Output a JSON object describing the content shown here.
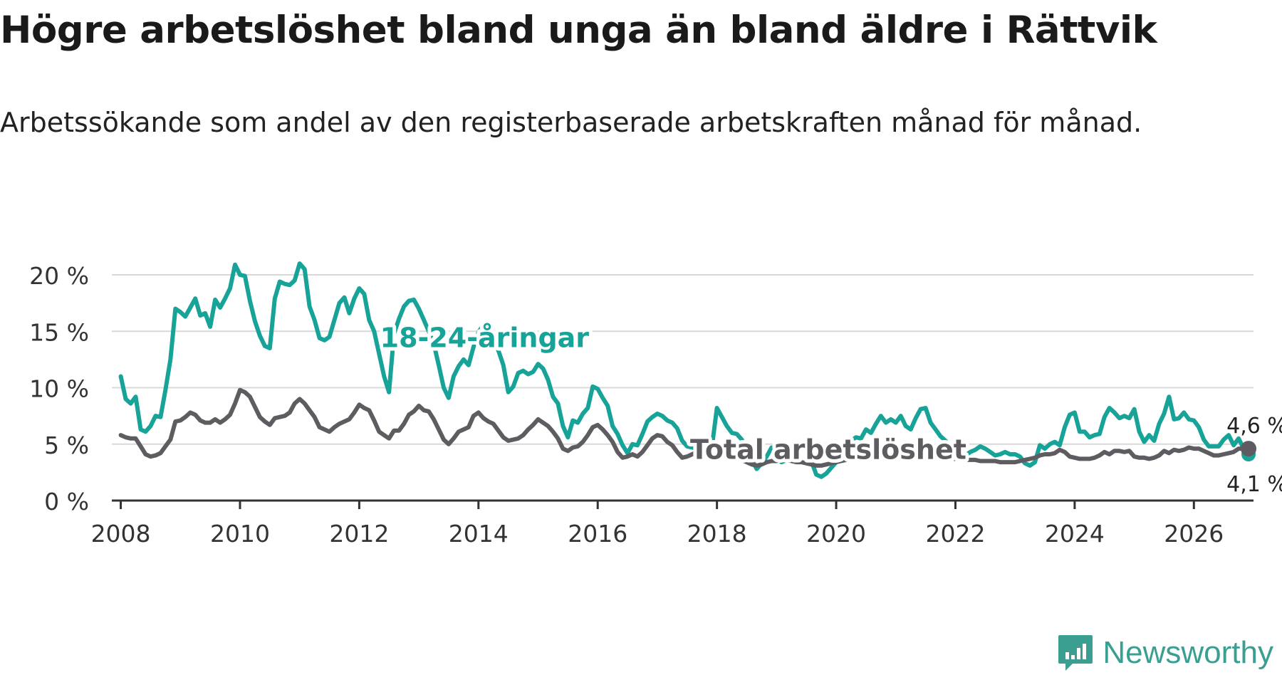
{
  "title": "Högre arbetslöshet bland unga än bland äldre i Rättvik",
  "subtitle": "Arbetssökande som andel av den registerbaserade arbetskraften månad för månad.",
  "brand": {
    "name": "Newsworthy",
    "icon": "chart-logo-icon"
  },
  "colors": {
    "youth": "#17a398",
    "total": "#5e5c60",
    "grid": "#d9d9d9",
    "axis": "#333333",
    "label_halo": "#ffffff"
  },
  "chart_data": {
    "type": "line",
    "xlabel": "",
    "ylabel": "",
    "xlim": [
      2007.85,
      2027.0
    ],
    "ylim": [
      0,
      20
    ],
    "x_ticks": [
      2008,
      2010,
      2012,
      2014,
      2016,
      2018,
      2020,
      2022,
      2024,
      2026
    ],
    "y_ticks": [
      0,
      5,
      10,
      15,
      20
    ],
    "y_tick_labels": [
      "0 %",
      "5 %",
      "10 %",
      "15 %",
      "20 %"
    ],
    "x_start": 2008.0,
    "x_step": 0.0833333,
    "grid": true,
    "series": [
      {
        "name": "18-24-åringar",
        "label": "18-24-åringar",
        "end_label": "4,1 %",
        "values": [
          11.0,
          9.0,
          8.6,
          9.2,
          6.3,
          6.1,
          6.6,
          7.5,
          7.4,
          9.8,
          12.5,
          17.0,
          16.7,
          16.3,
          17.1,
          17.9,
          16.4,
          16.6,
          15.4,
          17.8,
          17.1,
          17.9,
          18.8,
          20.9,
          20.0,
          19.9,
          17.7,
          15.9,
          14.6,
          13.7,
          13.5,
          17.9,
          19.4,
          19.2,
          19.1,
          19.5,
          21.0,
          20.5,
          17.2,
          16.0,
          14.4,
          14.2,
          14.5,
          16.0,
          17.5,
          18.0,
          16.6,
          17.9,
          18.8,
          18.3,
          16.0,
          15.0,
          13.0,
          11.0,
          9.6,
          14.8,
          16.1,
          17.2,
          17.7,
          17.8,
          17.0,
          16.0,
          15.0,
          13.9,
          12.0,
          10.0,
          9.1,
          11.0,
          11.9,
          12.5,
          12.0,
          13.6,
          14.9,
          15.6,
          15.1,
          14.6,
          13.3,
          12.0,
          9.6,
          10.1,
          11.3,
          11.5,
          11.2,
          11.4,
          12.1,
          11.7,
          10.7,
          9.2,
          8.6,
          6.6,
          5.6,
          7.1,
          6.9,
          7.7,
          8.2,
          10.1,
          9.9,
          9.1,
          8.4,
          6.6,
          5.9,
          4.9,
          4.2,
          5.0,
          4.9,
          5.9,
          7.0,
          7.4,
          7.7,
          7.5,
          7.1,
          6.9,
          6.4,
          5.3,
          4.8,
          4.7,
          4.6,
          5.3,
          5.1,
          4.8,
          8.2,
          7.4,
          6.6,
          6.0,
          5.9,
          5.4,
          4.6,
          3.7,
          2.8,
          3.3,
          3.9,
          4.7,
          3.9,
          3.4,
          3.6,
          4.4,
          4.9,
          5.1,
          4.8,
          3.5,
          2.3,
          2.1,
          2.4,
          2.9,
          3.4,
          3.8,
          4.8,
          5.3,
          5.6,
          5.5,
          6.3,
          6.0,
          6.8,
          7.5,
          6.9,
          7.2,
          6.9,
          7.5,
          6.6,
          6.3,
          7.3,
          8.1,
          8.2,
          6.9,
          6.3,
          5.7,
          5.3,
          4.8,
          4.5,
          4.2,
          4.0,
          4.3,
          4.5,
          4.8,
          4.6,
          4.3,
          4.0,
          4.1,
          4.3,
          4.1,
          4.1,
          3.9,
          3.3,
          3.1,
          3.4,
          4.9,
          4.6,
          5.0,
          5.2,
          4.9,
          6.5,
          7.6,
          7.8,
          6.1,
          6.1,
          5.6,
          5.8,
          5.9,
          7.4,
          8.2,
          7.8,
          7.3,
          7.5,
          7.3,
          8.1,
          6.1,
          5.2,
          5.8,
          5.3,
          6.8,
          7.7,
          9.2,
          7.2,
          7.3,
          7.8,
          7.2,
          7.1,
          6.5,
          5.4,
          4.8,
          4.8,
          4.8,
          5.4,
          5.8,
          4.9,
          5.5,
          4.6,
          4.1
        ]
      },
      {
        "name": "Total arbetslöshet",
        "label": "Total arbetslöshet",
        "end_label": "4,6 %",
        "values": [
          5.8,
          5.6,
          5.5,
          5.5,
          4.8,
          4.1,
          3.9,
          4.0,
          4.2,
          4.8,
          5.4,
          7.0,
          7.1,
          7.4,
          7.8,
          7.6,
          7.1,
          6.9,
          6.9,
          7.2,
          6.9,
          7.2,
          7.6,
          8.6,
          9.8,
          9.6,
          9.2,
          8.3,
          7.4,
          7.0,
          6.7,
          7.3,
          7.4,
          7.5,
          7.8,
          8.6,
          9.0,
          8.6,
          8.0,
          7.4,
          6.5,
          6.3,
          6.1,
          6.5,
          6.8,
          7.0,
          7.2,
          7.8,
          8.5,
          8.2,
          8.0,
          7.1,
          6.1,
          5.8,
          5.5,
          6.2,
          6.2,
          6.8,
          7.6,
          7.9,
          8.4,
          8.0,
          7.9,
          7.2,
          6.3,
          5.4,
          5.0,
          5.5,
          6.1,
          6.3,
          6.5,
          7.5,
          7.8,
          7.3,
          7.0,
          6.8,
          6.2,
          5.6,
          5.3,
          5.4,
          5.5,
          5.8,
          6.3,
          6.7,
          7.2,
          6.9,
          6.6,
          6.1,
          5.5,
          4.6,
          4.4,
          4.7,
          4.8,
          5.2,
          5.8,
          6.5,
          6.7,
          6.3,
          5.8,
          5.2,
          4.3,
          3.8,
          3.9,
          4.1,
          3.9,
          4.3,
          4.9,
          5.5,
          5.8,
          5.7,
          5.2,
          4.9,
          4.3,
          3.8,
          3.9,
          4.1,
          4.3,
          4.6,
          4.7,
          4.6,
          4.4,
          4.3,
          4.2,
          4.0,
          3.8,
          3.6,
          3.4,
          3.2,
          3.1,
          3.2,
          3.4,
          3.5,
          3.5,
          3.6,
          3.6,
          3.5,
          3.4,
          3.4,
          3.3,
          3.2,
          3.1,
          3.1,
          3.2,
          3.3,
          3.4,
          3.5,
          3.6,
          3.7,
          3.7,
          3.8,
          3.9,
          4.0,
          4.0,
          4.1,
          4.2,
          4.1,
          4.0,
          4.0,
          4.0,
          4.1,
          4.0,
          4.0,
          3.9,
          3.9,
          3.8,
          3.8,
          3.8,
          3.7,
          3.7,
          3.7,
          3.6,
          3.6,
          3.6,
          3.5,
          3.5,
          3.5,
          3.5,
          3.4,
          3.4,
          3.4,
          3.4,
          3.5,
          3.6,
          3.7,
          3.8,
          4.0,
          4.1,
          4.1,
          4.2,
          4.5,
          4.3,
          3.9,
          3.8,
          3.7,
          3.7,
          3.7,
          3.8,
          4.0,
          4.3,
          4.1,
          4.4,
          4.4,
          4.3,
          4.4,
          3.9,
          3.8,
          3.8,
          3.7,
          3.8,
          4.0,
          4.4,
          4.2,
          4.5,
          4.4,
          4.5,
          4.7,
          4.6,
          4.6,
          4.4,
          4.2,
          4.0,
          4.0,
          4.1,
          4.2,
          4.3,
          4.6,
          4.6,
          4.6
        ]
      }
    ]
  }
}
